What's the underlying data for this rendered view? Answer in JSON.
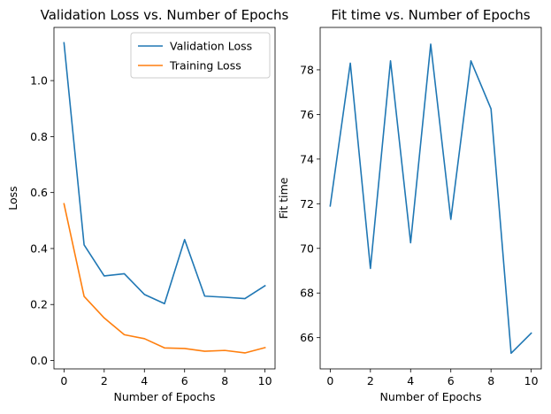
{
  "chart_data": [
    {
      "type": "line",
      "title": "Validation Loss vs. Number of Epochs",
      "xlabel": "Number of Epochs",
      "ylabel": "Loss",
      "xlim": [
        -0.5,
        10.5
      ],
      "ylim": [
        -0.03,
        1.19
      ],
      "xticks": [
        0,
        2,
        4,
        6,
        8,
        10
      ],
      "yticks": [
        0.0,
        0.2,
        0.4,
        0.6,
        0.8,
        1.0
      ],
      "ytick_decimals": 1,
      "grid": false,
      "legend": "top-right",
      "x": [
        0,
        1,
        2,
        3,
        4,
        5,
        6,
        7,
        8,
        9,
        10
      ],
      "series": [
        {
          "name": "Validation Loss",
          "color": "#1f77b4",
          "values": [
            1.135,
            0.413,
            0.302,
            0.31,
            0.236,
            0.203,
            0.432,
            0.23,
            0.226,
            0.221,
            0.267
          ]
        },
        {
          "name": "Training Loss",
          "color": "#ff7f0e",
          "values": [
            0.56,
            0.229,
            0.152,
            0.092,
            0.078,
            0.045,
            0.043,
            0.033,
            0.036,
            0.027,
            0.046
          ]
        }
      ]
    },
    {
      "type": "line",
      "title": "Fit time vs. Number of Epochs",
      "xlabel": "Number of Epochs",
      "ylabel": "Fit time",
      "xlim": [
        -0.5,
        10.5
      ],
      "ylim": [
        64.6,
        79.9
      ],
      "xticks": [
        0,
        2,
        4,
        6,
        8,
        10
      ],
      "yticks": [
        66,
        68,
        70,
        72,
        74,
        76,
        78
      ],
      "ytick_decimals": 0,
      "grid": false,
      "legend": "none",
      "x": [
        0,
        1,
        2,
        3,
        4,
        5,
        6,
        7,
        8,
        9,
        10
      ],
      "series": [
        {
          "name": "",
          "color": "#1f77b4",
          "values": [
            71.9,
            78.3,
            69.1,
            78.4,
            70.25,
            79.15,
            71.3,
            78.4,
            76.25,
            65.3,
            66.2
          ]
        }
      ]
    }
  ]
}
